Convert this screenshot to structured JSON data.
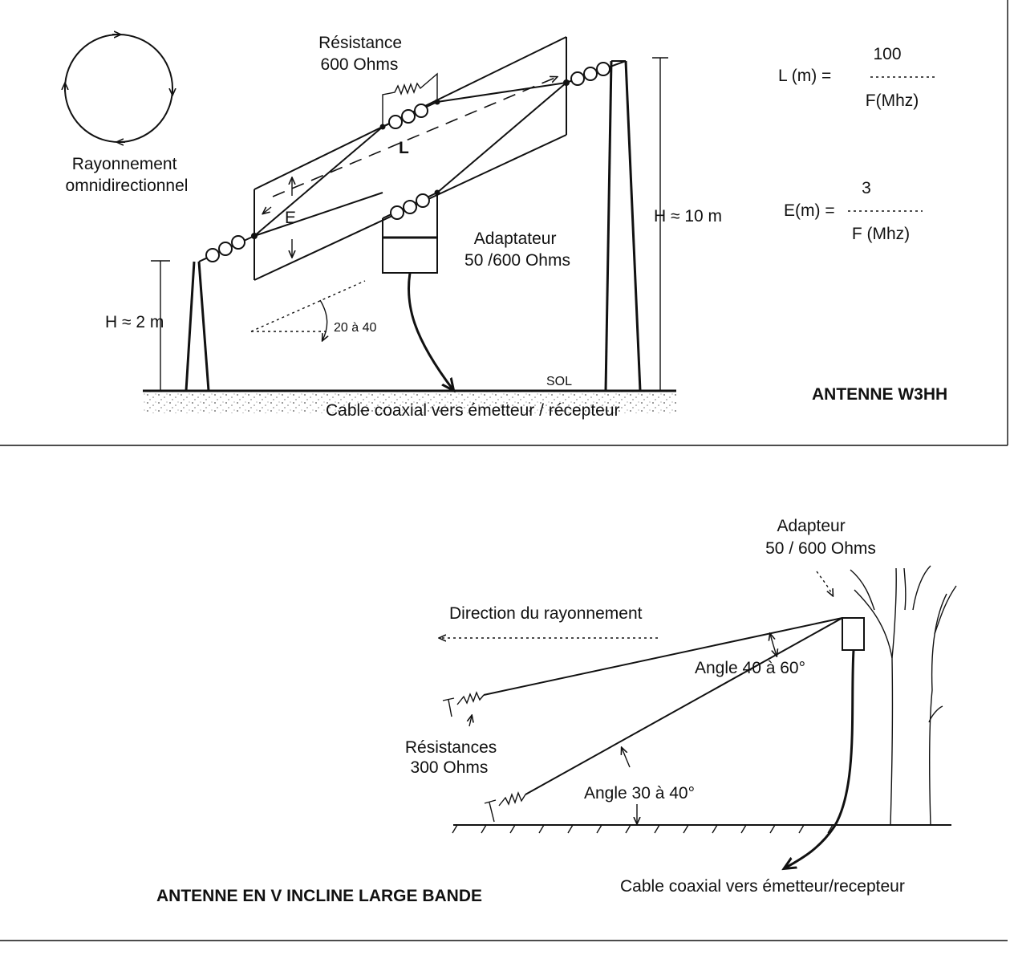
{
  "top": {
    "rayonnement": [
      "Rayonnement",
      "omnidirectionnel"
    ],
    "resistance": [
      "Résistance",
      "600 Ohms"
    ],
    "label_l": "L",
    "label_e": "E",
    "adaptateur": [
      "Adaptateur",
      "50 /600 Ohms"
    ],
    "h_small": "H ≈ 2 m",
    "h_tall": "H ≈ 10 m",
    "angle": "20 à 40",
    "sol": "SOL",
    "cable": "Cable coaxial vers émetteur / récepteur",
    "formula_l": {
      "lhs": "L (m)  =",
      "num": "100",
      "den": "F(Mhz)"
    },
    "formula_e": {
      "lhs": "E(m) =",
      "num": "3",
      "den": "F (Mhz)"
    },
    "title": "ANTENNE W3HH"
  },
  "bottom": {
    "adapteur": [
      "Adapteur",
      "50 / 600 Ohms"
    ],
    "direction": "Direction du rayonnement",
    "angle_upper": "Angle 40 à 60°",
    "resistances": [
      "Résistances",
      "300 Ohms"
    ],
    "angle_lower": "Angle 30 à 40°",
    "cable": "Cable coaxial vers émetteur/recepteur",
    "title": "ANTENNE EN V INCLINE LARGE BANDE"
  }
}
